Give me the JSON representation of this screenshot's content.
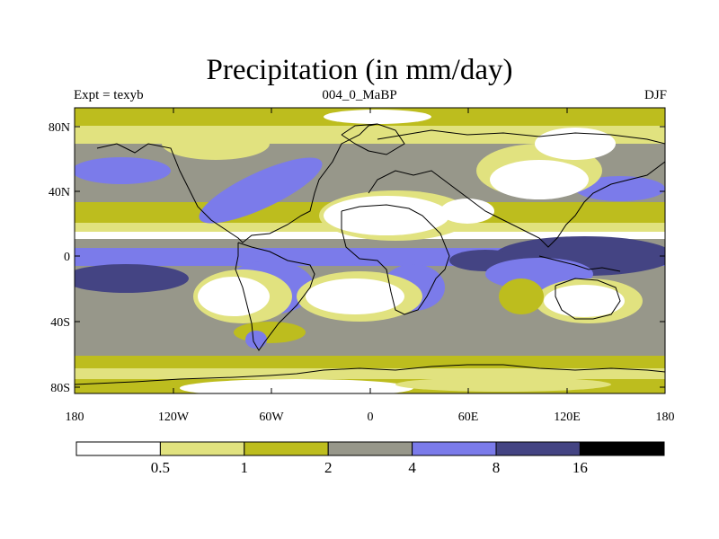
{
  "title": "Precipitation (in mm/day)",
  "subtitle_left": "Expt = texyb",
  "subtitle_center": "004_0_MaBP",
  "subtitle_right": "DJF",
  "colors": {
    "level0": "#ffffff",
    "level1": "#e1e27f",
    "level2": "#bdbd1e",
    "level3": "#97978a",
    "level4": "#7b7bea",
    "level5": "#444483",
    "level6": "#000000",
    "coast": "#000000"
  },
  "lat_labels": [
    "80N",
    "40N",
    "0",
    "40S",
    "80S"
  ],
  "lon_labels": [
    "180",
    "120W",
    "60W",
    "0",
    "60E",
    "120E",
    "180"
  ],
  "colorbar": {
    "labels": [
      "0.5",
      "1",
      "2",
      "4",
      "8",
      "16"
    ]
  },
  "chart_data": {
    "type": "heatmap",
    "title": "Precipitation (in mm/day)",
    "x_range": [
      -180,
      180
    ],
    "y_range": [
      -90,
      90
    ],
    "levels_mm_per_day": [
      0.5,
      1,
      2,
      4,
      8,
      16
    ],
    "bands_by_latitude": [
      {
        "lat": 85,
        "level": 2
      },
      {
        "lat": 75,
        "level": 1
      },
      {
        "lat": 65,
        "level": 2
      },
      {
        "lat": 55,
        "level": 3
      },
      {
        "lat": 45,
        "level": 4
      },
      {
        "lat": 35,
        "level": 3
      },
      {
        "lat": 25,
        "level": 1
      },
      {
        "lat": 15,
        "level": 0
      },
      {
        "lat": 8,
        "level": 3
      },
      {
        "lat": 0,
        "level": 4
      },
      {
        "lat": -10,
        "level": 5
      },
      {
        "lat": -20,
        "level": 4
      },
      {
        "lat": -30,
        "level": 0
      },
      {
        "lat": -40,
        "level": 3
      },
      {
        "lat": -50,
        "level": 3
      },
      {
        "lat": -60,
        "level": 2
      },
      {
        "lat": -70,
        "level": 1
      },
      {
        "lat": -80,
        "level": 2
      }
    ]
  }
}
